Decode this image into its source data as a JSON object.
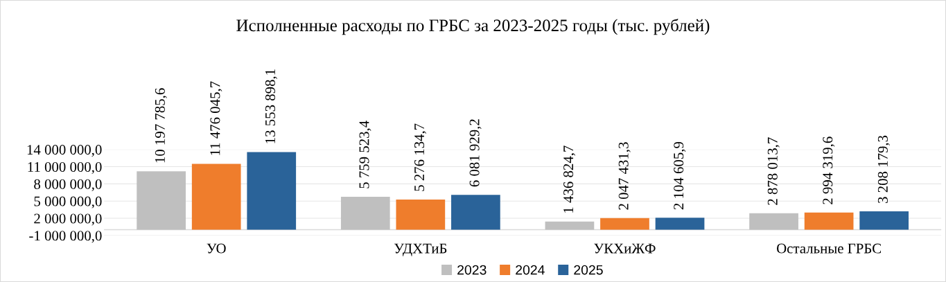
{
  "chart_data": {
    "type": "bar",
    "title": "Исполненные расходы по ГРБС за 2023-2025 годы (тыс. рублей)",
    "categories": [
      "УО",
      "УДХТиБ",
      "УКХиЖФ",
      "Остальные ГРБС"
    ],
    "series": [
      {
        "name": "2023",
        "color": "#bfbfbf",
        "values": [
          10197785.6,
          5759523.4,
          1436824.7,
          2878013.7
        ],
        "value_labels": [
          "10 197 785,6",
          "5 759 523,4",
          "1 436 824,7",
          "2 878 013,7"
        ]
      },
      {
        "name": "2024",
        "color": "#ef7d2c",
        "values": [
          11476045.7,
          5276134.7,
          2047431.3,
          2994319.6
        ],
        "value_labels": [
          "11 476 045,7",
          "5 276 134,7",
          "2 047 431,3",
          "2 994 319,6"
        ]
      },
      {
        "name": "2025",
        "color": "#2a6399",
        "values": [
          13553898.1,
          6081929.2,
          2104605.9,
          3208179.3
        ],
        "value_labels": [
          "13 553 898,1",
          "6 081 929,2",
          "2 104 605,9",
          "3 208 179,3"
        ]
      }
    ],
    "ylim": [
      -1000000,
      14000000
    ],
    "yticks": [
      {
        "value": -1000000,
        "label": "-1 000 000,0"
      },
      {
        "value": 2000000,
        "label": "2 000 000,0"
      },
      {
        "value": 5000000,
        "label": "5 000 000,0"
      },
      {
        "value": 8000000,
        "label": "8 000 000,0"
      },
      {
        "value": 11000000,
        "label": "11 000 000,0"
      },
      {
        "value": 14000000,
        "label": "14 000 000,0"
      }
    ],
    "grid": "y",
    "legend": "bottom"
  }
}
